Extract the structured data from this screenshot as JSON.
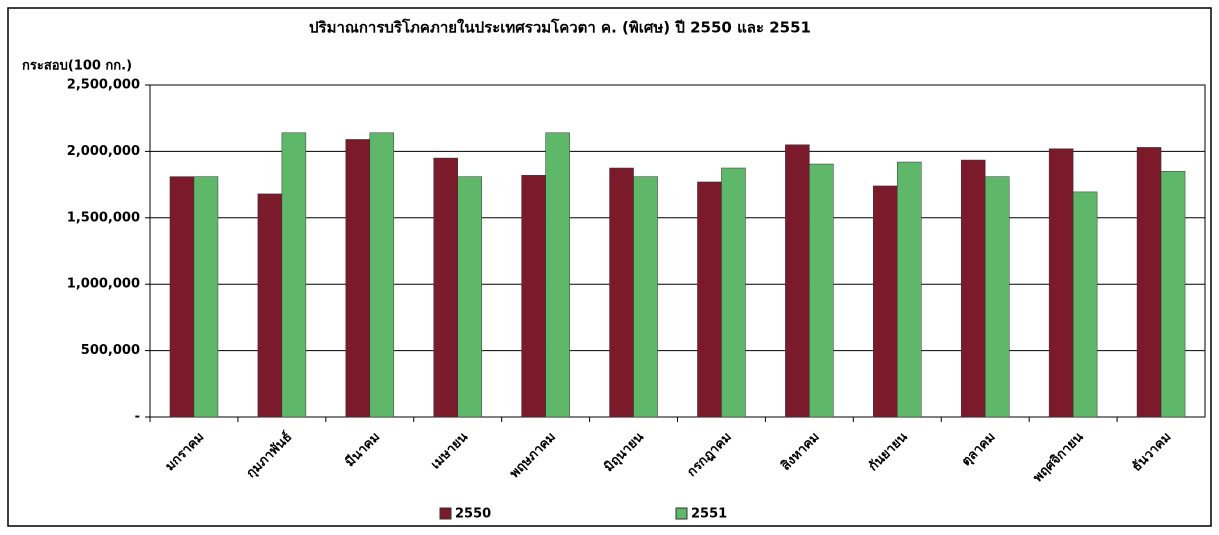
{
  "chart_data": {
    "type": "bar",
    "title": "ปริมาณการบริโภคภายในประเทศรวมโควตา ค. (พิเศษ) ปี 2550 และ 2551",
    "y_label": "กระสอบ(100 กก.)",
    "categories": [
      "มกราคม",
      "กุมภาพันธ์",
      "มีนาคม",
      "เมษายน",
      "พฤษภาคม",
      "มิถุนายน",
      "กรกฎาคม",
      "สิงหาคม",
      "กันยายน",
      "ตุลาคม",
      "พฤศจิกายน",
      "ธันวาคม"
    ],
    "series": [
      {
        "name": "2550",
        "color": "#7a1a2a",
        "values": [
          1810000,
          1680000,
          2090000,
          1950000,
          1820000,
          1875000,
          1770000,
          2050000,
          1740000,
          1935000,
          2020000,
          2030000
        ]
      },
      {
        "name": "2551",
        "color": "#5fb86a",
        "values": [
          1810000,
          2140000,
          2140000,
          1810000,
          2140000,
          1810000,
          1875000,
          1905000,
          1920000,
          1810000,
          1695000,
          1850000
        ]
      }
    ],
    "ylim": [
      0,
      2500000
    ],
    "yticks": [
      {
        "value": 0,
        "label": "-"
      },
      {
        "value": 500000,
        "label": "500,000"
      },
      {
        "value": 1000000,
        "label": "1,000,000"
      },
      {
        "value": 1500000,
        "label": "1,500,000"
      },
      {
        "value": 2000000,
        "label": "2,000,000"
      },
      {
        "value": 2500000,
        "label": "2,500,000"
      }
    ],
    "grid": true,
    "legend": "bottom"
  }
}
